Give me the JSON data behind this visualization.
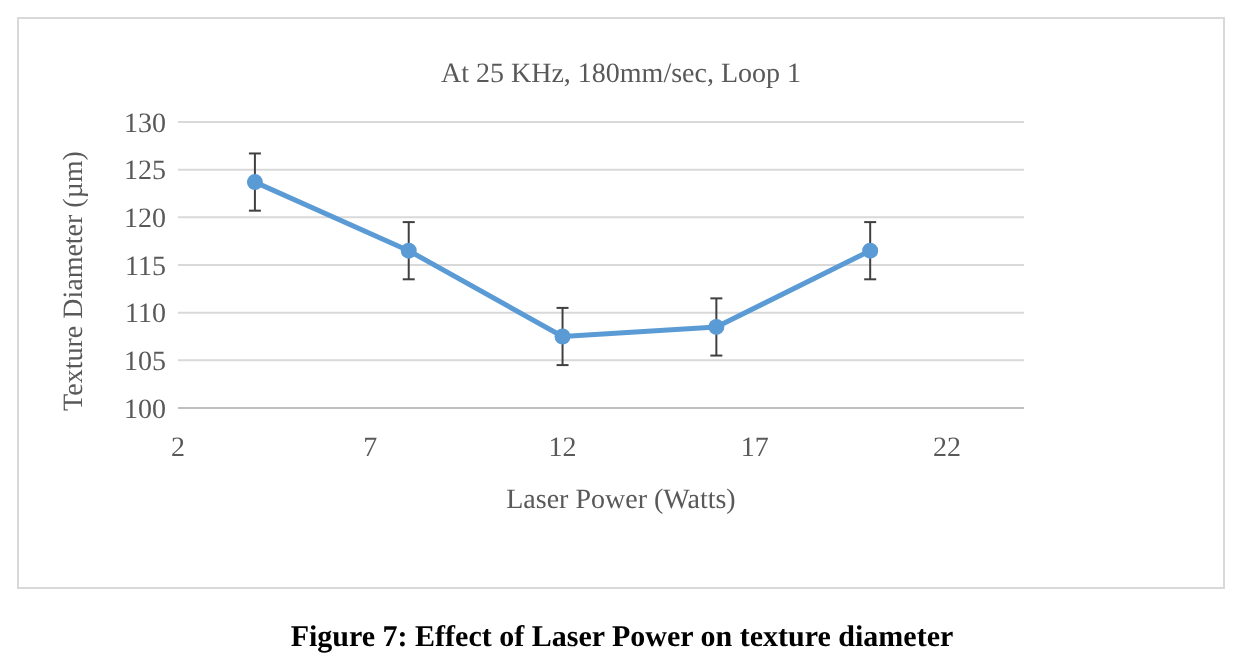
{
  "chart_data": {
    "type": "line",
    "title": "At 25 KHz, 180mm/sec, Loop 1",
    "xlabel": "Laser Power (Watts)",
    "ylabel": "Texture Diameter (µm)",
    "annotations": [
      "Figure 7: Effect of Laser Power on texture diameter"
    ],
    "x": [
      4,
      8,
      12,
      16,
      20
    ],
    "series": [
      {
        "color": "#5b9bd5",
        "values": [
          123.7,
          116.5,
          107.5,
          108.5,
          116.5
        ],
        "errors": [
          3,
          3,
          3,
          3,
          3
        ]
      }
    ],
    "xlim": [
      2,
      24
    ],
    "xticks": [
      2,
      7,
      12,
      17,
      22
    ],
    "ylim": [
      100,
      130
    ],
    "yticks": [
      100,
      105,
      110,
      115,
      120,
      125,
      130
    ],
    "grid": "y",
    "marker": "circle",
    "line_style": "solid"
  }
}
